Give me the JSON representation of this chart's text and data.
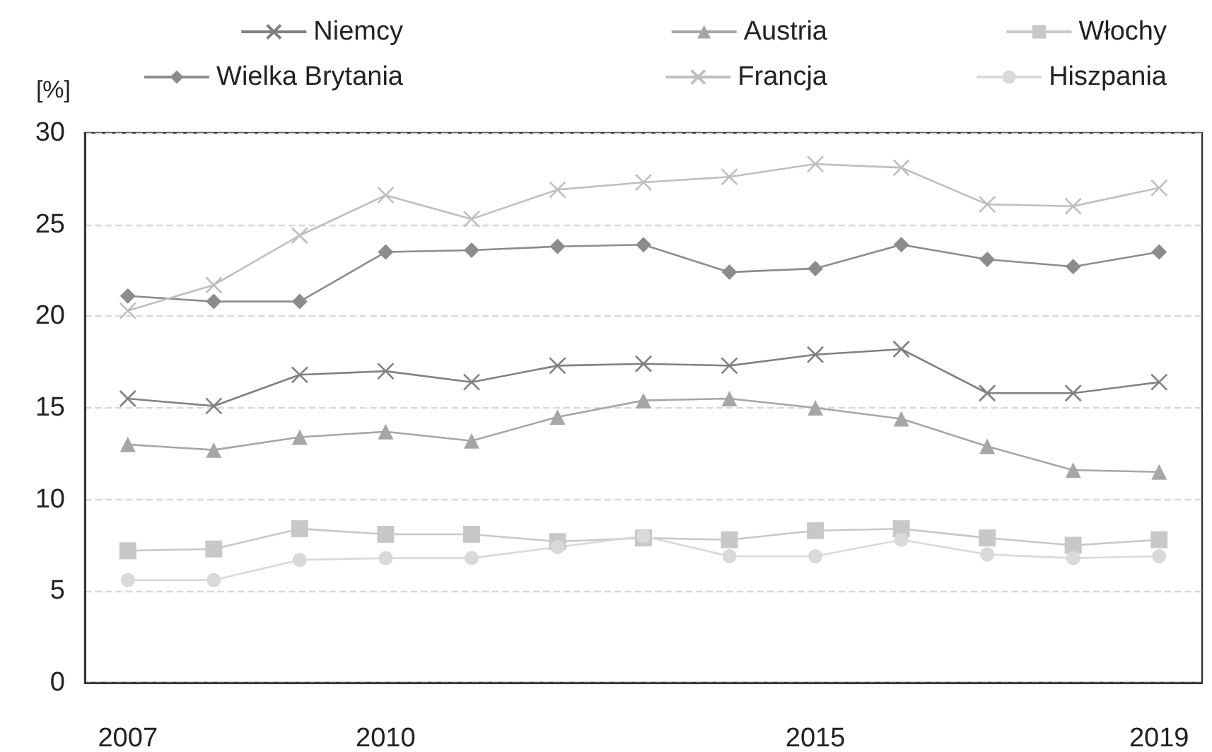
{
  "chart_data": {
    "type": "line",
    "ylabel": "[%]",
    "x": [
      2007,
      2008,
      2009,
      2010,
      2011,
      2012,
      2013,
      2014,
      2015,
      2016,
      2017,
      2018,
      2019
    ],
    "xlim": [
      2006.5,
      2019.5
    ],
    "xticks": [
      2007,
      2010,
      2015,
      2019
    ],
    "ylim": [
      0,
      30
    ],
    "yticks": [
      0,
      5,
      10,
      15,
      20,
      25,
      30
    ],
    "grid": "y",
    "legend": "top",
    "series": [
      {
        "name": "Niemcy",
        "color": "#808080",
        "marker": "cross",
        "values": [
          15.5,
          15.1,
          16.8,
          17.0,
          16.4,
          17.3,
          17.4,
          17.3,
          17.9,
          18.2,
          15.8,
          15.8,
          16.4
        ]
      },
      {
        "name": "Austria",
        "color": "#a6a6a6",
        "marker": "triangle",
        "values": [
          13.0,
          12.7,
          13.4,
          13.7,
          13.2,
          14.5,
          15.4,
          15.5,
          15.0,
          14.4,
          12.9,
          11.6,
          11.5
        ]
      },
      {
        "name": "Włochy",
        "color": "#c8c8c8",
        "marker": "square",
        "values": [
          7.2,
          7.3,
          8.4,
          8.1,
          8.1,
          7.7,
          7.9,
          7.8,
          8.3,
          8.4,
          7.9,
          7.5,
          7.8
        ]
      },
      {
        "name": "Wielka Brytania",
        "color": "#8c8c8c",
        "marker": "diamond",
        "values": [
          21.1,
          20.8,
          20.8,
          23.5,
          23.6,
          23.8,
          23.9,
          22.4,
          22.6,
          23.9,
          23.1,
          22.7,
          23.5
        ]
      },
      {
        "name": "Francja",
        "color": "#bfbfbf",
        "marker": "cross",
        "values": [
          20.3,
          21.7,
          24.4,
          26.6,
          25.3,
          26.9,
          27.3,
          27.6,
          28.3,
          28.1,
          26.1,
          26.0,
          27.0
        ]
      },
      {
        "name": "Hiszpania",
        "color": "#d9d9d9",
        "marker": "circle",
        "values": [
          5.6,
          5.6,
          6.7,
          6.8,
          6.8,
          7.4,
          8.0,
          6.9,
          6.9,
          7.8,
          7.0,
          6.8,
          6.9
        ]
      }
    ]
  }
}
